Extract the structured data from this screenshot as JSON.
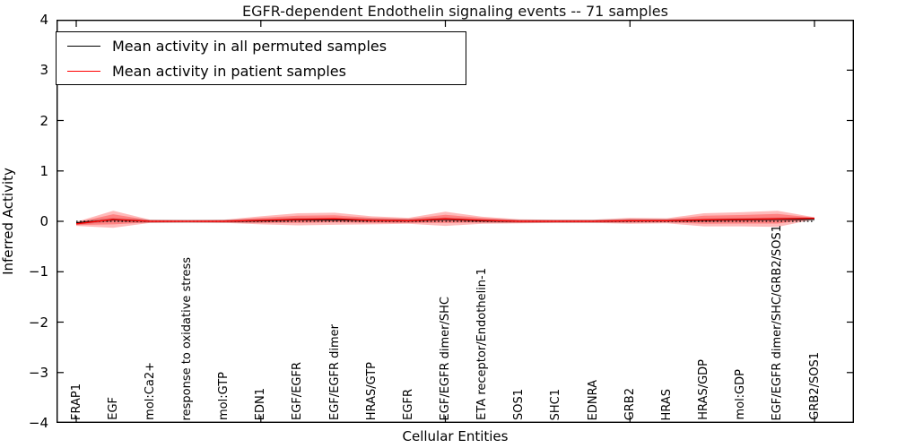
{
  "chart_data": {
    "type": "line",
    "title": "EGFR-dependent Endothelin signaling events -- 71 samples",
    "xlabel": "Cellular Entities",
    "ylabel": "Inferred Activity",
    "ylim": [
      -4,
      4
    ],
    "ytick_labels": [
      "4",
      "3",
      "2",
      "1",
      "0",
      "−1",
      "−2",
      "−3",
      "−4"
    ],
    "grid": false,
    "legend_position": "upper left",
    "categories": [
      "FRAP1",
      "EGF",
      "mol:Ca2+",
      "response to oxidative stress",
      "mol:GTP",
      "EDN1",
      "EGF/EGFR",
      "EGF/EGFR dimer",
      "HRAS/GTP",
      "EGFR",
      "EGF/EGFR dimer/SHC",
      "ETA receptor/Endothelin-1",
      "SOS1",
      "SHC1",
      "EDNRA",
      "GRB2",
      "HRAS",
      "HRAS/GDP",
      "mol:GDP",
      "EGF/EGFR dimer/SHC/GRB2/SOS1",
      "GRB2/SOS1"
    ],
    "series": [
      {
        "name": "Mean activity in all permuted samples",
        "color": "#000000",
        "values": [
          -0.03,
          0.03,
          0,
          0,
          0,
          0.01,
          0.03,
          0.03,
          0.02,
          0.01,
          0.04,
          0.01,
          0,
          0,
          0,
          0.01,
          0.01,
          0.02,
          0.03,
          0.04,
          0.04
        ]
      },
      {
        "name": "Mean activity in patient samples",
        "color": "#ff0000",
        "values": [
          -0.05,
          0.04,
          0,
          0,
          0,
          0.02,
          0.04,
          0.05,
          0.02,
          0.01,
          0.05,
          0.02,
          0,
          0,
          0,
          0.01,
          0.01,
          0.03,
          0.04,
          0.05,
          0.06
        ]
      }
    ],
    "bands": {
      "patient_outer": {
        "color": "rgba(255,0,0,0.27)",
        "halfwidths": [
          0.04,
          0.17,
          0.03,
          0.025,
          0.03,
          0.08,
          0.12,
          0.12,
          0.08,
          0.06,
          0.14,
          0.07,
          0.04,
          0.03,
          0.03,
          0.06,
          0.05,
          0.13,
          0.14,
          0.16,
          0.02
        ]
      },
      "patient_inner": {
        "color": "rgba(255,0,0,0.30)",
        "halfwidths": [
          0.025,
          0.1,
          0.02,
          0.015,
          0.02,
          0.05,
          0.07,
          0.07,
          0.05,
          0.04,
          0.08,
          0.045,
          0.025,
          0.02,
          0.02,
          0.035,
          0.03,
          0.08,
          0.085,
          0.095,
          0.012
        ]
      },
      "permuted": {
        "color": "rgba(0,0,0,0.16)",
        "halfwidth": 0.035
      }
    },
    "zero_line": {
      "value": 0,
      "style": "dotted",
      "color": "#000000"
    }
  }
}
